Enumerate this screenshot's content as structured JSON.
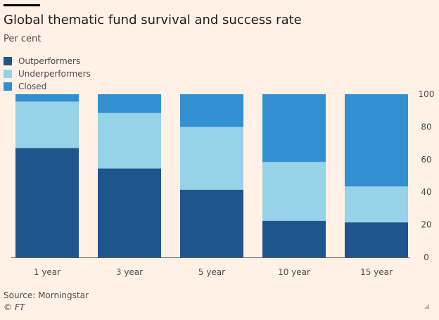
{
  "colors": {
    "background": "#fff1e5",
    "outperformers": "#1e558c",
    "underperformers": "#96d2e8",
    "closed": "#3390d0",
    "axis": "#66605c"
  },
  "chart_data": {
    "type": "bar",
    "stacked": true,
    "title": "Global thematic fund survival and success rate",
    "subtitle": "Per cent",
    "categories": [
      "1 year",
      "3 year",
      "5 year",
      "10 year",
      "15 year"
    ],
    "series": [
      {
        "name": "Outperformers",
        "values": [
          67,
          54.5,
          41.5,
          22.5,
          21.5
        ]
      },
      {
        "name": "Underperformers",
        "values": [
          28.5,
          34,
          38.5,
          36,
          22
        ]
      },
      {
        "name": "Closed",
        "values": [
          4.5,
          11.5,
          20,
          41.5,
          56.5
        ]
      }
    ],
    "ylim": [
      0,
      100
    ],
    "yticks": [
      0,
      20,
      40,
      60,
      80,
      100
    ],
    "y_axis_side": "right",
    "grid": false,
    "legend_position": "top-left"
  },
  "footer": {
    "source": "Source: Morningstar",
    "copyright": "© FT"
  }
}
